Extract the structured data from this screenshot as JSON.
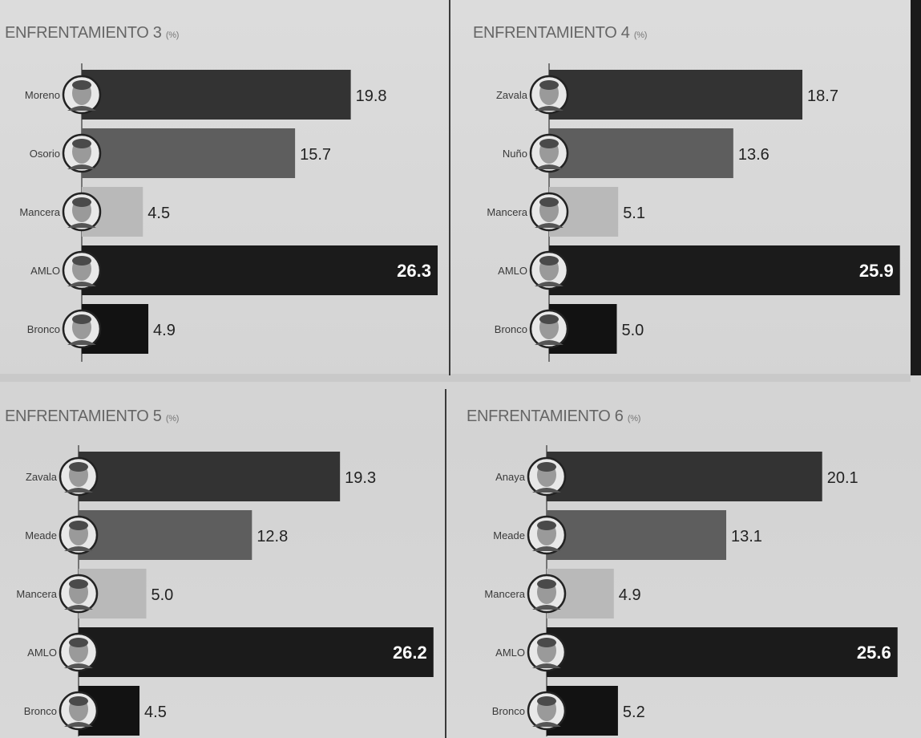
{
  "theme": {
    "colors": {
      "bar_pri": "#333333",
      "bar_pan": "#5e5e5e",
      "bar_mancera": "#b9b9b9",
      "bar_amlo": "#1b1b1b",
      "bar_bronco": "#121212"
    }
  },
  "chart_data": [
    {
      "type": "bar",
      "orientation": "horizontal",
      "title": "ENFRENTAMIENTO 3",
      "unit": "(%)",
      "categories": [
        "Moreno",
        "Osorio",
        "Mancera",
        "AMLO",
        "Bronco"
      ],
      "values": [
        19.8,
        15.7,
        4.5,
        26.3,
        4.9
      ],
      "value_labels": [
        "19.8",
        "15.7",
        "4.5",
        "26.3",
        "4.9"
      ],
      "colors": [
        "#333333",
        "#5e5e5e",
        "#b9b9b9",
        "#1b1b1b",
        "#121212"
      ],
      "label_inside": [
        false,
        false,
        false,
        true,
        false
      ],
      "icons": [
        "candidate-photo-icon",
        "candidate-photo-icon",
        "candidate-photo-icon",
        "candidate-photo-icon",
        "candidate-photo-icon"
      ]
    },
    {
      "type": "bar",
      "orientation": "horizontal",
      "title": "ENFRENTAMIENTO 4",
      "unit": "(%)",
      "categories": [
        "Zavala",
        "Nuño",
        "Mancera",
        "AMLO",
        "Bronco"
      ],
      "values": [
        18.7,
        13.6,
        5.1,
        25.9,
        5.0
      ],
      "value_labels": [
        "18.7",
        "13.6",
        "5.1",
        "25.9",
        "5.0"
      ],
      "colors": [
        "#333333",
        "#5e5e5e",
        "#b9b9b9",
        "#1b1b1b",
        "#121212"
      ],
      "label_inside": [
        false,
        false,
        false,
        true,
        false
      ],
      "icons": [
        "candidate-photo-icon",
        "candidate-photo-icon",
        "candidate-photo-icon",
        "candidate-photo-icon",
        "candidate-photo-icon"
      ]
    },
    {
      "type": "bar",
      "orientation": "horizontal",
      "title": "ENFRENTAMIENTO 5",
      "unit": "(%)",
      "categories": [
        "Zavala",
        "Meade",
        "Mancera",
        "AMLO",
        "Bronco"
      ],
      "values": [
        19.3,
        12.8,
        5.0,
        26.2,
        4.5
      ],
      "value_labels": [
        "19.3",
        "12.8",
        "5.0",
        "26.2",
        "4.5"
      ],
      "colors": [
        "#333333",
        "#5e5e5e",
        "#b9b9b9",
        "#1b1b1b",
        "#121212"
      ],
      "label_inside": [
        false,
        false,
        false,
        true,
        false
      ],
      "icons": [
        "candidate-photo-icon",
        "candidate-photo-icon",
        "candidate-photo-icon",
        "candidate-photo-icon",
        "candidate-photo-icon"
      ]
    },
    {
      "type": "bar",
      "orientation": "horizontal",
      "title": "ENFRENTAMIENTO 6",
      "unit": "(%)",
      "categories": [
        "Anaya",
        "Meade",
        "Mancera",
        "AMLO",
        "Bronco"
      ],
      "values": [
        20.1,
        13.1,
        4.9,
        25.6,
        5.2
      ],
      "value_labels": [
        "20.1",
        "13.1",
        "4.9",
        "25.6",
        "5.2"
      ],
      "colors": [
        "#333333",
        "#5e5e5e",
        "#b9b9b9",
        "#1b1b1b",
        "#121212"
      ],
      "label_inside": [
        false,
        false,
        false,
        true,
        false
      ],
      "icons": [
        "candidate-photo-icon",
        "candidate-photo-icon",
        "candidate-photo-icon",
        "candidate-photo-icon",
        "candidate-photo-icon"
      ]
    }
  ]
}
